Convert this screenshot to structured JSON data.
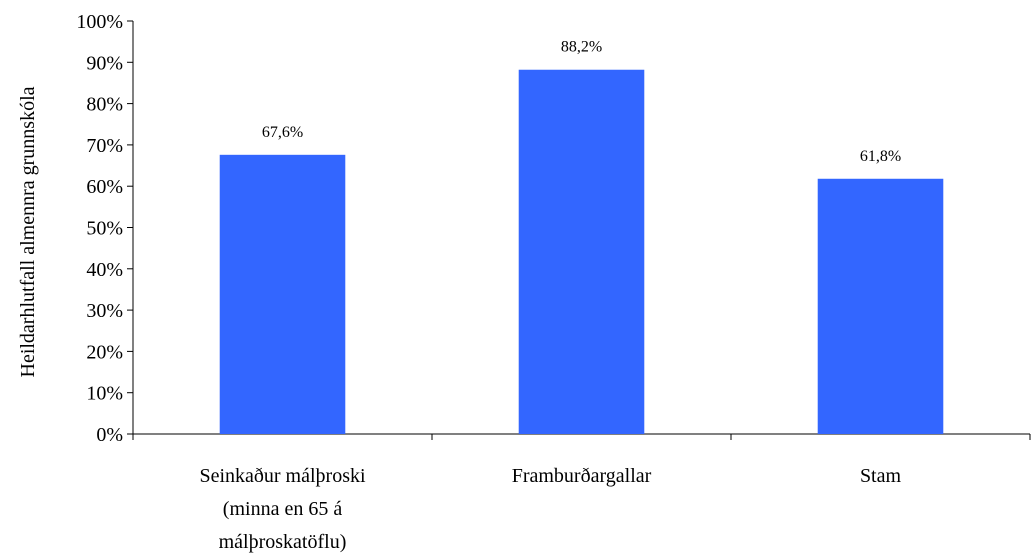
{
  "chart_data": {
    "type": "bar",
    "title": "",
    "xlabel": "",
    "ylabel": "Heildarhlutfall almennra grunnskóla",
    "ylim": [
      0,
      100
    ],
    "y_ticks": [
      "0%",
      "10%",
      "20%",
      "30%",
      "40%",
      "50%",
      "60%",
      "70%",
      "80%",
      "90%",
      "100%"
    ],
    "categories": [
      [
        "Seinkaður málþroski",
        "(minna en 65 á",
        "málþroskatöflu)"
      ],
      [
        "Framburðargallar"
      ],
      [
        "Stam"
      ]
    ],
    "values": [
      67.6,
      88.2,
      61.8
    ],
    "data_labels": [
      "67,6%",
      "88,2%",
      "61,8%"
    ],
    "bar_color": "#3366FF",
    "grid": false,
    "legend": "none"
  }
}
